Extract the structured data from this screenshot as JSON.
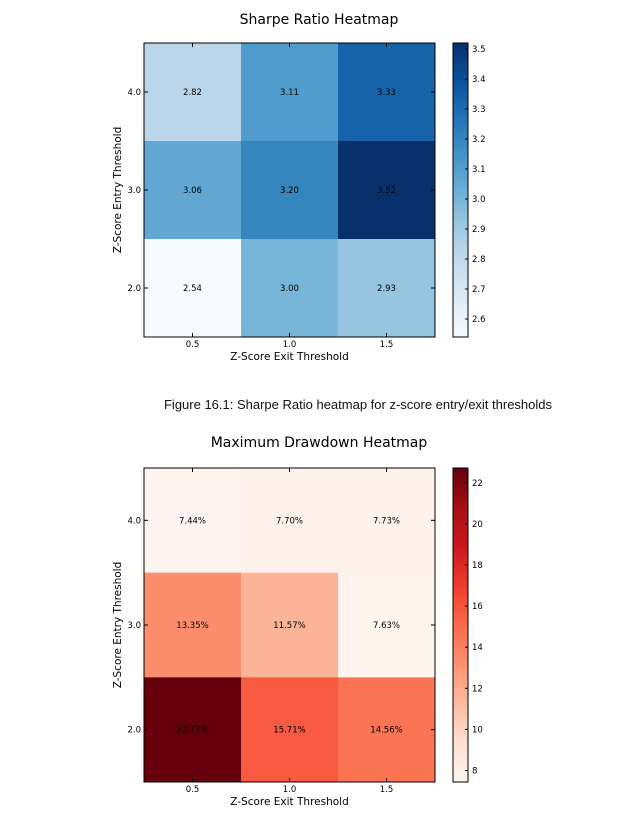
{
  "chart_data": [
    {
      "type": "heatmap",
      "title": "Sharpe Ratio Heatmap",
      "xlabel": "Z-Score Exit Threshold",
      "ylabel": "Z-Score Entry Threshold",
      "x_categories": [
        "0.5",
        "1.0",
        "1.5"
      ],
      "y_categories": [
        "4.0",
        "3.0",
        "2.0"
      ],
      "values": [
        [
          2.82,
          3.11,
          3.33
        ],
        [
          3.06,
          3.2,
          3.52
        ],
        [
          2.54,
          3.0,
          2.93
        ]
      ],
      "cell_labels": [
        [
          "2.82",
          "3.11",
          "3.33"
        ],
        [
          "3.06",
          "3.20",
          "3.52"
        ],
        [
          "2.54",
          "3.00",
          "2.93"
        ]
      ],
      "colormap": "Blues",
      "vmin": 2.54,
      "vmax": 3.52,
      "colorbar_ticks": [
        "2.6",
        "2.7",
        "2.8",
        "2.9",
        "3.0",
        "3.1",
        "3.2",
        "3.3",
        "3.4",
        "3.5"
      ]
    },
    {
      "type": "heatmap",
      "title": "Maximum Drawdown Heatmap",
      "xlabel": "Z-Score Exit Threshold",
      "ylabel": "Z-Score Entry Threshold",
      "x_categories": [
        "0.5",
        "1.0",
        "1.5"
      ],
      "y_categories": [
        "4.0",
        "3.0",
        "2.0"
      ],
      "values": [
        [
          7.44,
          7.7,
          7.73
        ],
        [
          13.35,
          11.57,
          7.63
        ],
        [
          22.72,
          15.71,
          14.56
        ]
      ],
      "cell_labels": [
        [
          "7.44%",
          "7.70%",
          "7.73%"
        ],
        [
          "13.35%",
          "11.57%",
          "7.63%"
        ],
        [
          "22.72%",
          "15.71%",
          "14.56%"
        ]
      ],
      "colormap": "Reds",
      "vmin": 7.44,
      "vmax": 22.72,
      "colorbar_ticks": [
        "8",
        "10",
        "12",
        "14",
        "16",
        "18",
        "20",
        "22"
      ]
    }
  ],
  "caption": "Figure 16.1: Sharpe Ratio heatmap for z-score entry/exit thresholds"
}
